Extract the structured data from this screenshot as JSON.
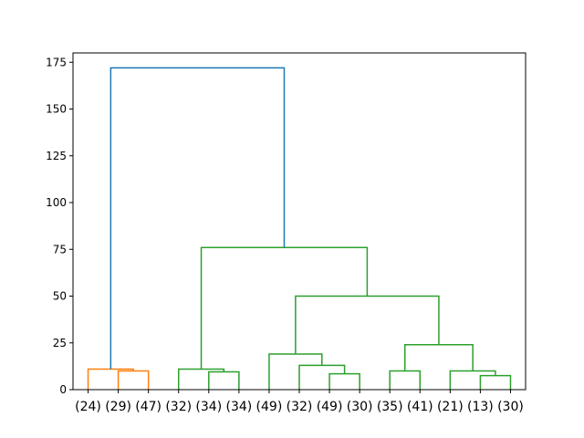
{
  "chart_data": {
    "type": "dendrogram",
    "title": "",
    "xlabel": "",
    "ylabel": "",
    "ylim": [
      0,
      180
    ],
    "yticks": [
      0,
      25,
      50,
      75,
      100,
      125,
      150,
      175
    ],
    "leaf_labels": [
      "(24)",
      "(29)",
      "(47)",
      "(32)",
      "(34)",
      "(34)",
      "(49)",
      "(32)",
      "(49)",
      "(30)",
      "(35)",
      "(41)",
      "(21)",
      "(13)",
      "(30)"
    ],
    "colors": {
      "above_threshold": "#1f77b4",
      "cluster_1": "#ff7f0e",
      "cluster_2": "#2ca02c"
    },
    "links": [
      {
        "left": 1,
        "right": 2,
        "left_h": 0,
        "right_h": 0,
        "height": 10,
        "color": "cluster_1"
      },
      {
        "left": 0,
        "right": 1.5,
        "left_h": 0,
        "right_h": 10,
        "height": 11,
        "color": "cluster_1"
      },
      {
        "left": 4,
        "right": 5,
        "left_h": 0,
        "right_h": 0,
        "height": 9.5,
        "color": "cluster_2"
      },
      {
        "left": 3,
        "right": 4.5,
        "left_h": 0,
        "right_h": 9.5,
        "height": 11,
        "color": "cluster_2"
      },
      {
        "left": 8,
        "right": 9,
        "left_h": 0,
        "right_h": 0,
        "height": 8.5,
        "color": "cluster_2"
      },
      {
        "left": 7,
        "right": 8.5,
        "left_h": 0,
        "right_h": 8.5,
        "height": 13,
        "color": "cluster_2"
      },
      {
        "left": 6,
        "right": 7.75,
        "left_h": 0,
        "right_h": 13,
        "height": 19,
        "color": "cluster_2"
      },
      {
        "left": 10,
        "right": 11,
        "left_h": 0,
        "right_h": 0,
        "height": 10,
        "color": "cluster_2"
      },
      {
        "left": 13,
        "right": 14,
        "left_h": 0,
        "right_h": 0,
        "height": 7.5,
        "color": "cluster_2"
      },
      {
        "left": 12,
        "right": 13.5,
        "left_h": 0,
        "right_h": 7.5,
        "height": 10,
        "color": "cluster_2"
      },
      {
        "left": 10.5,
        "right": 12.75,
        "left_h": 10,
        "right_h": 10,
        "height": 24,
        "color": "cluster_2"
      },
      {
        "left": 6.875,
        "right": 11.625,
        "left_h": 19,
        "right_h": 24,
        "height": 50,
        "color": "cluster_2"
      },
      {
        "left": 3.75,
        "right": 9.25,
        "left_h": 11,
        "right_h": 50,
        "height": 76,
        "color": "cluster_2"
      },
      {
        "left": 0.75,
        "right": 6.5,
        "left_h": 11,
        "right_h": 76,
        "height": 172,
        "color": "above_threshold"
      }
    ]
  }
}
